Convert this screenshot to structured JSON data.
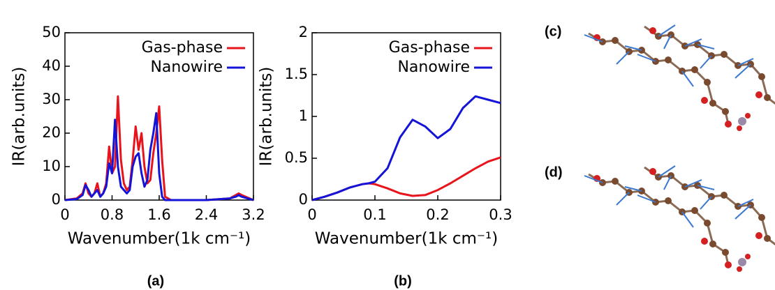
{
  "chart_data": [
    {
      "type": "line",
      "panel_label": "(a)",
      "x_label": "Wavenumber(1k cm⁻¹)",
      "y_label": "IR(arb.units)",
      "x": [
        0,
        0.2,
        0.3,
        0.35,
        0.4,
        0.45,
        0.5,
        0.55,
        0.6,
        0.65,
        0.7,
        0.75,
        0.8,
        0.85,
        0.9,
        0.95,
        1.0,
        1.05,
        1.1,
        1.15,
        1.2,
        1.25,
        1.3,
        1.35,
        1.4,
        1.45,
        1.5,
        1.55,
        1.6,
        1.65,
        1.7,
        1.8,
        2.4,
        2.8,
        2.9,
        2.95,
        3.0,
        3.2
      ],
      "series": [
        {
          "name": "Gas-phase",
          "color": "#e8141c",
          "values": [
            0,
            0.5,
            2,
            5,
            2,
            1,
            2,
            5,
            1,
            2,
            5,
            16,
            8,
            10,
            31,
            12,
            5,
            3,
            4,
            12,
            22,
            15,
            20,
            10,
            5,
            6,
            14,
            20,
            28,
            12,
            1,
            0,
            0,
            0.5,
            1.5,
            2,
            1.5,
            0
          ]
        },
        {
          "name": "Nanowire",
          "color": "#1414d8",
          "values": [
            0,
            0.3,
            1.5,
            4.5,
            3,
            1,
            2,
            3,
            1,
            2,
            4,
            11,
            8,
            24,
            10,
            4,
            3,
            2,
            3,
            10,
            13,
            14,
            8,
            4,
            6,
            15,
            20,
            26,
            8,
            1,
            0,
            0,
            0,
            0.5,
            1,
            1.5,
            1,
            0
          ]
        }
      ],
      "xlim": [
        0,
        3.2
      ],
      "xticks": [
        0,
        0.8,
        1.6,
        2.4,
        3.2
      ],
      "ylim": [
        0,
        50
      ],
      "yticks": [
        0,
        10,
        20,
        30,
        40,
        50
      ],
      "legend": "upper right"
    },
    {
      "type": "line",
      "panel_label": "(b)",
      "x_label": "Wavenumber(1k cm⁻¹)",
      "y_label": "IR(arb.units)",
      "x": [
        0,
        0.02,
        0.04,
        0.06,
        0.08,
        0.09,
        0.1,
        0.12,
        0.14,
        0.16,
        0.18,
        0.2,
        0.22,
        0.24,
        0.26,
        0.28,
        0.3
      ],
      "series": [
        {
          "name": "Gas-phase",
          "color": "#e8141c",
          "values": [
            0,
            0.04,
            0.09,
            0.15,
            0.19,
            0.2,
            0.19,
            0.14,
            0.08,
            0.05,
            0.06,
            0.12,
            0.2,
            0.29,
            0.38,
            0.46,
            0.51
          ]
        },
        {
          "name": "Nanowire",
          "color": "#1414d8",
          "values": [
            0,
            0.04,
            0.09,
            0.15,
            0.19,
            0.2,
            0.22,
            0.38,
            0.75,
            0.96,
            0.88,
            0.74,
            0.85,
            1.1,
            1.24,
            1.2,
            1.16
          ]
        }
      ],
      "xlim": [
        0,
        0.3
      ],
      "xticks": [
        0,
        0.1,
        0.2,
        0.3
      ],
      "ylim": [
        0,
        2
      ],
      "yticks": [
        0,
        0.5,
        1,
        1.5,
        2
      ],
      "legend": "upper right"
    }
  ],
  "images": [
    {
      "label": "(c)"
    },
    {
      "label": "(d)"
    }
  ]
}
